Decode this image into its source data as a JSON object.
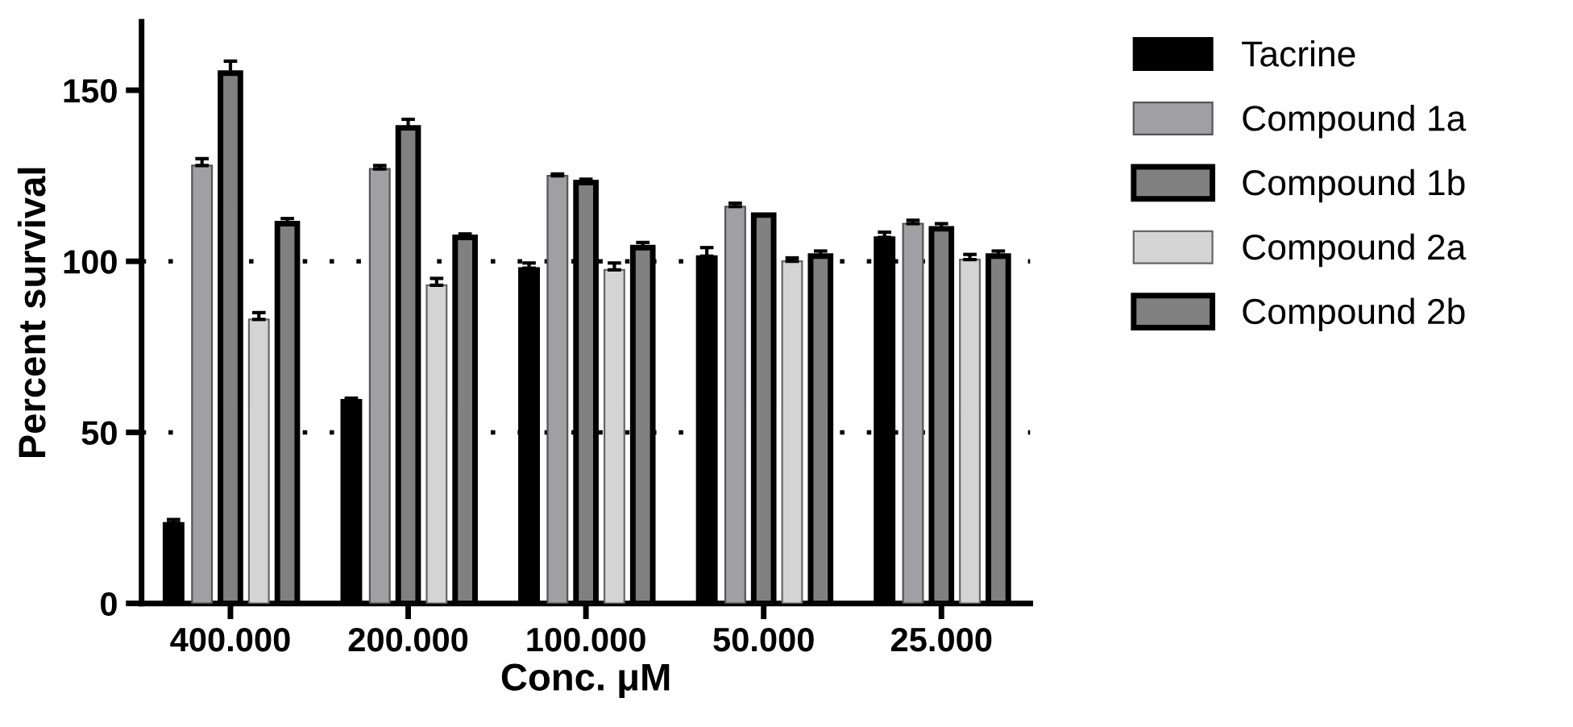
{
  "chart_data": {
    "type": "bar",
    "xlabel": "Conc. μM",
    "ylabel": "Percent survival",
    "categories": [
      "400.000",
      "200.000",
      "100.000",
      "50.000",
      "25.000"
    ],
    "series": [
      {
        "name": "Tacrine",
        "color": "#000000",
        "values": [
          23.5,
          59.5,
          98,
          101.5,
          107
        ],
        "errors": [
          1,
          0.5,
          1.5,
          2.5,
          1.5
        ]
      },
      {
        "name": "Compound 1a",
        "color": "#a0a0a4",
        "values": [
          128,
          127,
          125,
          116,
          111
        ],
        "errors": [
          2,
          1,
          0.5,
          1,
          1
        ]
      },
      {
        "name": "Compound 1b",
        "color": "#808080",
        "values": [
          155,
          139,
          123,
          113.5,
          109.5
        ],
        "errors": [
          3.5,
          2.5,
          1,
          null,
          1.5
        ]
      },
      {
        "name": "Compound 2a",
        "color": "#d4d4d4",
        "values": [
          83,
          93,
          97.5,
          100,
          100.5
        ],
        "errors": [
          2,
          2,
          2,
          1,
          1.5
        ]
      },
      {
        "name": "Compound 2b",
        "color": "#808080",
        "values": [
          111,
          107,
          104,
          101.5,
          101.5
        ],
        "errors": [
          1.5,
          1,
          1.5,
          1.5,
          1.5
        ]
      }
    ],
    "ylim": [
      0,
      170
    ],
    "yticks": [
      0,
      50,
      100,
      150
    ],
    "ref_lines": [
      {
        "axis": "y",
        "value": 50,
        "line_style": "dotted"
      },
      {
        "axis": "y",
        "value": 100,
        "line_style": "dotted"
      }
    ],
    "legend": "right",
    "grid": false
  }
}
